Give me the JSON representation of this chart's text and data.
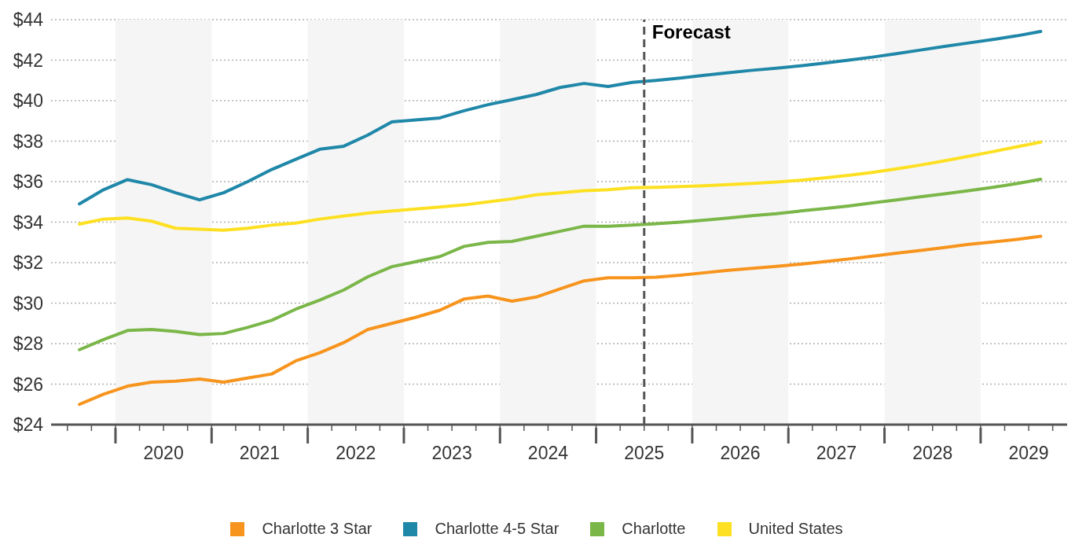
{
  "chart_data": {
    "type": "line",
    "x": [
      2019.625,
      2019.875,
      2020.125,
      2020.375,
      2020.625,
      2020.875,
      2021.125,
      2021.375,
      2021.625,
      2021.875,
      2022.125,
      2022.375,
      2022.625,
      2022.875,
      2023.125,
      2023.375,
      2023.625,
      2023.875,
      2024.125,
      2024.375,
      2024.625,
      2024.875,
      2025.125,
      2025.375,
      2025.625,
      2025.875,
      2026.125,
      2026.375,
      2026.625,
      2026.875,
      2027.125,
      2027.375,
      2027.625,
      2027.875,
      2028.125,
      2028.375,
      2028.625,
      2028.875,
      2029.125,
      2029.375,
      2029.625
    ],
    "series": [
      {
        "name": "Charlotte 3 Star",
        "color": "#f7941d",
        "values": [
          25.0,
          25.5,
          25.9,
          26.1,
          26.15,
          26.25,
          26.1,
          26.3,
          26.5,
          27.15,
          27.55,
          28.05,
          28.7,
          29.0,
          29.3,
          29.65,
          30.2,
          30.35,
          30.1,
          30.3,
          30.7,
          31.1,
          31.25,
          31.25,
          31.28,
          31.38,
          31.5,
          31.62,
          31.72,
          31.82,
          31.92,
          32.05,
          32.18,
          32.32,
          32.47,
          32.6,
          32.75,
          32.9,
          33.02,
          33.15,
          33.3
        ]
      },
      {
        "name": "Charlotte 4-5 Star",
        "color": "#1f87a8",
        "values": [
          34.9,
          35.6,
          36.1,
          35.85,
          35.45,
          35.1,
          35.45,
          36.0,
          36.6,
          37.1,
          37.6,
          37.75,
          38.3,
          38.95,
          39.05,
          39.15,
          39.5,
          39.8,
          40.05,
          40.3,
          40.65,
          40.85,
          40.7,
          40.9,
          41.0,
          41.12,
          41.25,
          41.38,
          41.5,
          41.6,
          41.72,
          41.85,
          42.0,
          42.15,
          42.32,
          42.5,
          42.68,
          42.85,
          43.02,
          43.2,
          43.42
        ]
      },
      {
        "name": "Charlotte",
        "color": "#7ab648",
        "values": [
          27.7,
          28.2,
          28.65,
          28.7,
          28.6,
          28.45,
          28.5,
          28.8,
          29.15,
          29.7,
          30.15,
          30.65,
          31.3,
          31.8,
          32.05,
          32.3,
          32.8,
          33.0,
          33.05,
          33.3,
          33.55,
          33.8,
          33.8,
          33.85,
          33.92,
          34.0,
          34.1,
          34.2,
          34.32,
          34.42,
          34.55,
          34.67,
          34.8,
          34.95,
          35.1,
          35.25,
          35.4,
          35.55,
          35.72,
          35.9,
          36.12
        ]
      },
      {
        "name": "United States",
        "color": "#fde021",
        "values": [
          33.9,
          34.15,
          34.2,
          34.05,
          33.7,
          33.65,
          33.6,
          33.7,
          33.85,
          33.95,
          34.15,
          34.3,
          34.45,
          34.55,
          34.65,
          34.75,
          34.85,
          35.0,
          35.15,
          35.35,
          35.45,
          35.55,
          35.6,
          35.7,
          35.72,
          35.76,
          35.8,
          35.85,
          35.91,
          35.98,
          36.07,
          36.18,
          36.31,
          36.46,
          36.63,
          36.82,
          37.03,
          37.25,
          37.48,
          37.72,
          37.95
        ]
      }
    ],
    "xlim": [
      2019.33,
      2029.9
    ],
    "xticks": [
      {
        "value": 2019.5,
        "label": null
      },
      {
        "value": 2019.75,
        "label": null
      },
      {
        "value": 2020,
        "label": null
      },
      {
        "value": 2020.25,
        "label": null
      },
      {
        "value": 2020.5,
        "label": "2020"
      },
      {
        "value": 2020.75,
        "label": null
      },
      {
        "value": 2021,
        "label": null
      },
      {
        "value": 2021.25,
        "label": null
      },
      {
        "value": 2021.5,
        "label": "2021"
      },
      {
        "value": 2021.75,
        "label": null
      },
      {
        "value": 2022,
        "label": null
      },
      {
        "value": 2022.25,
        "label": null
      },
      {
        "value": 2022.5,
        "label": "2022"
      },
      {
        "value": 2022.75,
        "label": null
      },
      {
        "value": 2023,
        "label": null
      },
      {
        "value": 2023.25,
        "label": null
      },
      {
        "value": 2023.5,
        "label": "2023"
      },
      {
        "value": 2023.75,
        "label": null
      },
      {
        "value": 2024,
        "label": null
      },
      {
        "value": 2024.25,
        "label": null
      },
      {
        "value": 2024.5,
        "label": "2024"
      },
      {
        "value": 2024.75,
        "label": null
      },
      {
        "value": 2025,
        "label": null
      },
      {
        "value": 2025.25,
        "label": null
      },
      {
        "value": 2025.5,
        "label": "2025"
      },
      {
        "value": 2025.75,
        "label": null
      },
      {
        "value": 2026,
        "label": null
      },
      {
        "value": 2026.25,
        "label": null
      },
      {
        "value": 2026.5,
        "label": "2026"
      },
      {
        "value": 2026.75,
        "label": null
      },
      {
        "value": 2027,
        "label": null
      },
      {
        "value": 2027.25,
        "label": null
      },
      {
        "value": 2027.5,
        "label": "2027"
      },
      {
        "value": 2027.75,
        "label": null
      },
      {
        "value": 2028,
        "label": null
      },
      {
        "value": 2028.25,
        "label": null
      },
      {
        "value": 2028.5,
        "label": "2028"
      },
      {
        "value": 2028.75,
        "label": null
      },
      {
        "value": 2029,
        "label": null
      },
      {
        "value": 2029.25,
        "label": null
      },
      {
        "value": 2029.5,
        "label": "2029"
      },
      {
        "value": 2029.75,
        "label": null
      }
    ],
    "ylim": [
      24,
      44
    ],
    "yticks": [
      {
        "value": 24,
        "label": "$24"
      },
      {
        "value": 26,
        "label": "$26"
      },
      {
        "value": 28,
        "label": "$28"
      },
      {
        "value": 30,
        "label": "$30"
      },
      {
        "value": 32,
        "label": "$32"
      },
      {
        "value": 34,
        "label": "$34"
      },
      {
        "value": 36,
        "label": "$36"
      },
      {
        "value": 38,
        "label": "$38"
      },
      {
        "value": 40,
        "label": "$40"
      },
      {
        "value": 42,
        "label": "$42"
      },
      {
        "value": 44,
        "label": "$44"
      }
    ],
    "grid": "y",
    "ref_lines": [
      {
        "axis": "x",
        "value": 2025.5,
        "label": "Forecast",
        "color": "#555555",
        "line_style": "dashed"
      }
    ],
    "bands": [
      {
        "axis": "x",
        "from": 2020,
        "to": 2021,
        "color": "#f5f5f5"
      },
      {
        "axis": "x",
        "from": 2022,
        "to": 2023,
        "color": "#f5f5f5"
      },
      {
        "axis": "x",
        "from": 2024,
        "to": 2025,
        "color": "#f5f5f5"
      },
      {
        "axis": "x",
        "from": 2026,
        "to": 2027,
        "color": "#f5f5f5"
      },
      {
        "axis": "x",
        "from": 2028,
        "to": 2029,
        "color": "#f5f5f5"
      }
    ],
    "legend": "bottom",
    "marker": "none",
    "line_style": "solid"
  }
}
